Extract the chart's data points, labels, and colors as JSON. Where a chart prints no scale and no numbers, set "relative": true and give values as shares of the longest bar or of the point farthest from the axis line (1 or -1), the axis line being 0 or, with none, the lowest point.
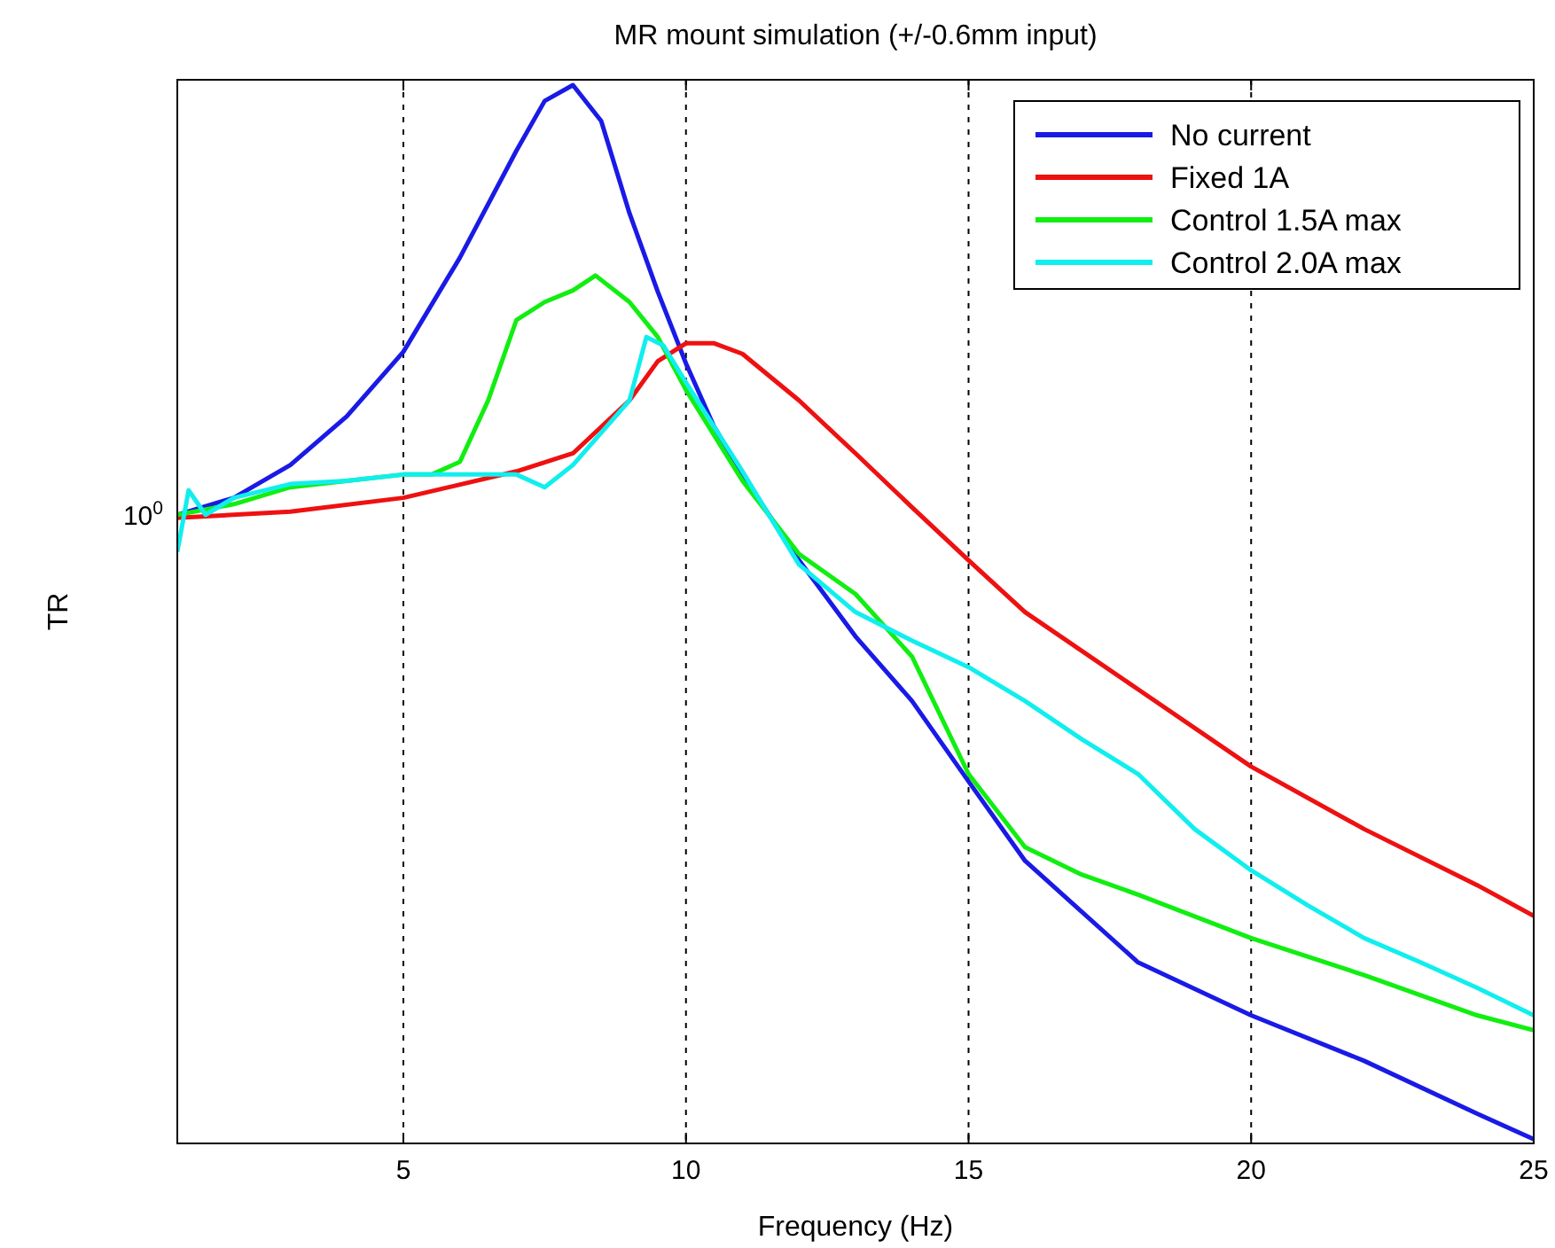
{
  "chart_data": {
    "type": "line",
    "title": "MR mount simulation (+/-0.6mm input)",
    "xlabel": "Frequency (Hz)",
    "ylabel": "TR",
    "relative": true,
    "grid": "x",
    "legend": "top right",
    "xlim": [
      1,
      25
    ],
    "xticks": [
      5,
      10,
      15,
      20,
      25
    ],
    "annotations": [
      "10$^{0}$"
    ],
    "series": [
      {
        "name": "No current",
        "color": "#1a1ae6",
        "x": [
          1,
          2,
          3,
          4,
          5,
          6,
          7,
          7.5,
          8,
          8.5,
          9,
          9.5,
          10,
          10.5,
          11,
          12,
          13,
          14,
          15,
          16,
          18,
          20,
          22,
          24,
          25
        ],
        "values": [
          0.594,
          0.61,
          0.641,
          0.687,
          0.748,
          0.837,
          0.938,
          0.985,
          1,
          0.966,
          0.879,
          0.805,
          0.737,
          0.677,
          0.632,
          0.551,
          0.479,
          0.418,
          0.342,
          0.267,
          0.171,
          0.121,
          0.078,
          0.028,
          0.004
        ]
      },
      {
        "name": "Fixed 1A",
        "color": "#ee1111",
        "x": [
          1,
          3,
          5,
          7,
          8,
          9,
          9.5,
          10,
          10.5,
          11,
          12,
          13,
          14,
          15,
          16,
          18,
          20,
          22,
          24,
          25
        ],
        "values": [
          0.591,
          0.597,
          0.61,
          0.635,
          0.652,
          0.702,
          0.739,
          0.756,
          0.756,
          0.746,
          0.702,
          0.652,
          0.601,
          0.551,
          0.502,
          0.429,
          0.356,
          0.297,
          0.244,
          0.215
        ]
      },
      {
        "name": "Control 1.5A max",
        "color": "#11ee11",
        "x": [
          1,
          2,
          3,
          4,
          5,
          5.5,
          6,
          6.5,
          7,
          7.5,
          8,
          8.4,
          9,
          9.5,
          10,
          11,
          12,
          13,
          14,
          15,
          16,
          17,
          18,
          20,
          22,
          24,
          25
        ],
        "values": [
          0.594,
          0.604,
          0.62,
          0.626,
          0.632,
          0.632,
          0.644,
          0.702,
          0.778,
          0.795,
          0.806,
          0.82,
          0.795,
          0.762,
          0.712,
          0.626,
          0.557,
          0.519,
          0.46,
          0.349,
          0.28,
          0.254,
          0.235,
          0.194,
          0.159,
          0.121,
          0.107
        ]
      },
      {
        "name": "Control 2.0A max",
        "color": "#11eeee",
        "x": [
          1,
          1.2,
          1.5,
          2,
          3,
          4,
          5,
          6,
          7,
          7.5,
          8,
          9,
          9.3,
          9.6,
          10,
          11,
          12,
          13,
          14,
          15,
          16,
          17,
          18,
          19,
          20,
          21,
          22,
          23,
          24,
          25
        ],
        "values": [
          0.559,
          0.617,
          0.594,
          0.61,
          0.623,
          0.626,
          0.632,
          0.632,
          0.632,
          0.62,
          0.641,
          0.702,
          0.762,
          0.754,
          0.719,
          0.635,
          0.547,
          0.502,
          0.475,
          0.45,
          0.418,
          0.382,
          0.349,
          0.297,
          0.258,
          0.225,
          0.194,
          0.171,
          0.147,
          0.121
        ]
      }
    ]
  }
}
